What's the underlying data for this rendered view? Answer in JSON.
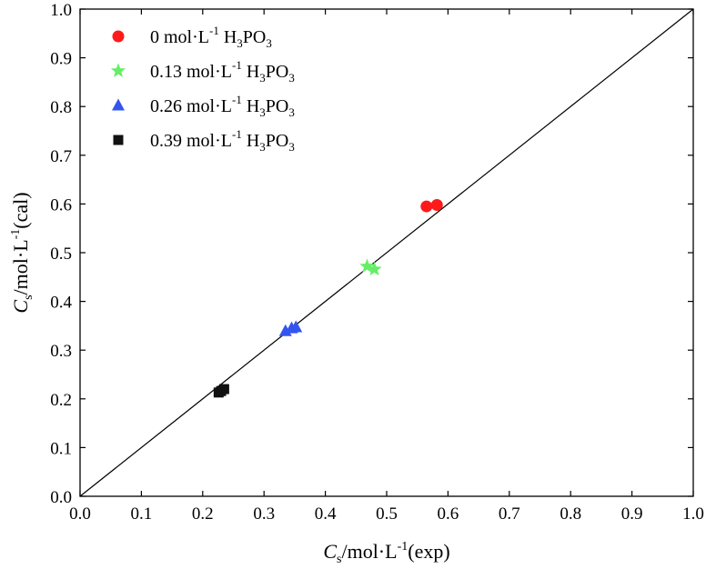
{
  "chart_data": {
    "type": "scatter",
    "title": "",
    "xlabel": {
      "main": "C",
      "sub": "s",
      "unit": "/mol·L",
      "sup": "-1",
      "tail": "(exp)"
    },
    "ylabel": {
      "main": "C",
      "sub": "s",
      "unit": "/mol·L",
      "sup": "-1",
      "tail": "(cal)"
    },
    "xlim": [
      0.0,
      1.0
    ],
    "ylim": [
      0.0,
      1.0
    ],
    "xticks": [
      "0.0",
      "0.1",
      "0.2",
      "0.3",
      "0.4",
      "0.5",
      "0.6",
      "0.7",
      "0.8",
      "0.9",
      "1.0"
    ],
    "yticks": [
      "0.0",
      "0.1",
      "0.2",
      "0.3",
      "0.4",
      "0.5",
      "0.6",
      "0.7",
      "0.8",
      "0.9",
      "1.0"
    ],
    "reference_line": {
      "x": [
        0.0,
        1.0
      ],
      "y": [
        0.0,
        1.0
      ],
      "color": "#000000"
    },
    "legend_position": "top-left",
    "series": [
      {
        "name": "0 mol·L-1 H3PO3",
        "label": {
          "pre": "0 mol·L",
          "sup": "-1",
          "mid": " H",
          "sub1": "3",
          "mid2": "PO",
          "sub2": "3"
        },
        "marker": "circle",
        "color": "#ff1a1a",
        "x": [
          0.565,
          0.582
        ],
        "y": [
          0.595,
          0.598
        ]
      },
      {
        "name": "0.13 mol·L-1 H3PO3",
        "label": {
          "pre": "0.13 mol·L",
          "sup": "-1",
          "mid": " H",
          "sub1": "3",
          "mid2": "PO",
          "sub2": "3"
        },
        "marker": "star",
        "color": "#66ee66",
        "x": [
          0.468,
          0.48
        ],
        "y": [
          0.472,
          0.466
        ]
      },
      {
        "name": "0.26 mol·L-1 H3PO3",
        "label": {
          "pre": "0.26 mol·L",
          "sup": "-1",
          "mid": " H",
          "sub1": "3",
          "mid2": "PO",
          "sub2": "3"
        },
        "marker": "triangle",
        "color": "#3355ee",
        "x": [
          0.335,
          0.345,
          0.352
        ],
        "y": [
          0.339,
          0.345,
          0.347
        ]
      },
      {
        "name": "0.39 mol·L-1 H3PO3",
        "label": {
          "pre": "0.39 mol·L",
          "sup": "-1",
          "mid": " H",
          "sub1": "3",
          "mid2": "PO",
          "sub2": "3"
        },
        "marker": "square",
        "color": "#111111",
        "x": [
          0.226,
          0.23,
          0.235
        ],
        "y": [
          0.213,
          0.216,
          0.22
        ]
      }
    ]
  }
}
